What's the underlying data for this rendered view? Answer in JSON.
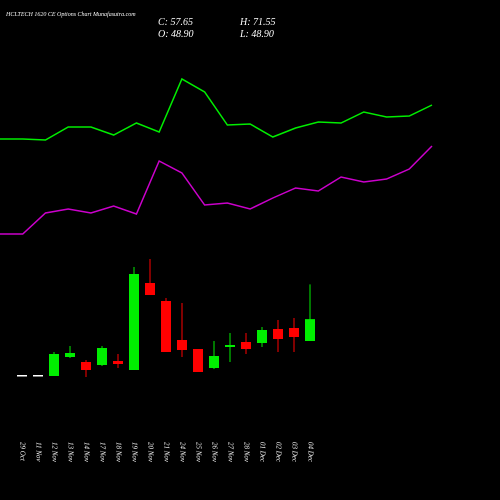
{
  "chart_data": [
    {
      "type": "line",
      "ylim": [
        0,
        100
      ],
      "series": [
        {
          "color": "#00ee00",
          "values": [
            55.5,
            55.5,
            55,
            61.5,
            61.5,
            57.5,
            63.5,
            59,
            85.5,
            79,
            62.5,
            63,
            56.5,
            61,
            64,
            63.5,
            69,
            66.5,
            67,
            72.5
          ]
        },
        {
          "color": "#cc00cc",
          "values": [
            8,
            8,
            18.5,
            20.5,
            18.5,
            22,
            18,
            44.5,
            38.5,
            22.5,
            23.5,
            20.5,
            26,
            31,
            29.5,
            36.5,
            34,
            35.5,
            40.5,
            52
          ]
        }
      ]
    },
    {
      "type": "candlestick",
      "title": "HCLTECH 1620 CE Options Chart Munafasutra.com",
      "summary": [
        "C: 57.65",
        "H: 71.55",
        "O: 48.90",
        "L: 48.90"
      ],
      "ylim": [
        30,
        90
      ],
      "up_color": "#00ee00",
      "down_color": "#ff0000",
      "doji_color": "#ffffff",
      "categories": [
        "29 Oct",
        "11 Nov",
        "12 Nov",
        "13 Nov",
        "14 Nov",
        "17 Nov",
        "18 Nov",
        "19 Nov",
        "20 Nov",
        "21 Nov",
        "24 Nov",
        "25 Nov",
        "26 Nov",
        "27 Nov",
        "28 Nov",
        "01 Dec",
        "02 Dec",
        "03 Dec",
        "04 Dec"
      ],
      "open": [
        35.3,
        35.3,
        34.9,
        42.5,
        40.5,
        39.3,
        40.9,
        37.3,
        72.1,
        64.9,
        49.3,
        45.7,
        38.1,
        46.5,
        48.5,
        48.1,
        53.7,
        54.1,
        48.9
      ],
      "high": [
        35.3,
        35.3,
        44.5,
        46.9,
        41.3,
        46.9,
        43.7,
        78.5,
        81.7,
        66.1,
        64.1,
        45.7,
        48.9,
        52.1,
        52.1,
        54.5,
        57.3,
        58.1,
        71.55
      ],
      "low": [
        35.3,
        35.3,
        34.9,
        42.1,
        34.5,
        38.9,
        38.1,
        37.3,
        67.3,
        44.5,
        42.5,
        36.5,
        37.7,
        40.5,
        43.7,
        46.5,
        44.5,
        44.5,
        48.9
      ],
      "close": [
        35.3,
        35.3,
        43.7,
        44.1,
        37.3,
        46.1,
        39.7,
        75.7,
        67.3,
        44.5,
        45.3,
        36.5,
        42.9,
        47.3,
        45.7,
        53.3,
        49.7,
        50.5,
        57.65
      ]
    }
  ]
}
